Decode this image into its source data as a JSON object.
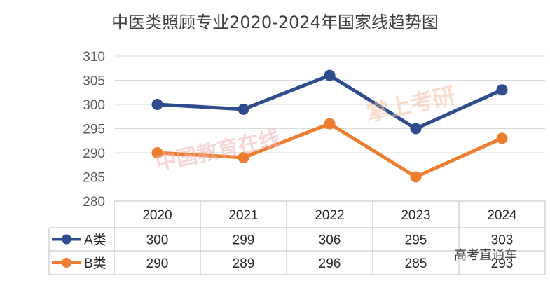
{
  "chart_data": {
    "type": "line",
    "title": "中医类照顾专业2020-2024年国家线趋势图",
    "categories": [
      "2020",
      "2021",
      "2022",
      "2023",
      "2024"
    ],
    "series": [
      {
        "name": "A类",
        "values": [
          300,
          299,
          306,
          295,
          303
        ],
        "color": "#2E4D8F"
      },
      {
        "name": "B类",
        "values": [
          290,
          289,
          296,
          285,
          293
        ],
        "color": "#ED7D31"
      }
    ],
    "ylim": [
      280,
      310
    ],
    "yticks": [
      "310",
      "305",
      "300",
      "295",
      "290",
      "285",
      "280"
    ],
    "grid": true,
    "legend": "data-table"
  },
  "watermarks": {
    "eol_text": "中国教育在线",
    "eol_url": "www.eol.cn",
    "kaoyan_text": "掌上考研",
    "kaoyan_url": "www.eaoyan.cn"
  },
  "footer_text": "高考直通车"
}
